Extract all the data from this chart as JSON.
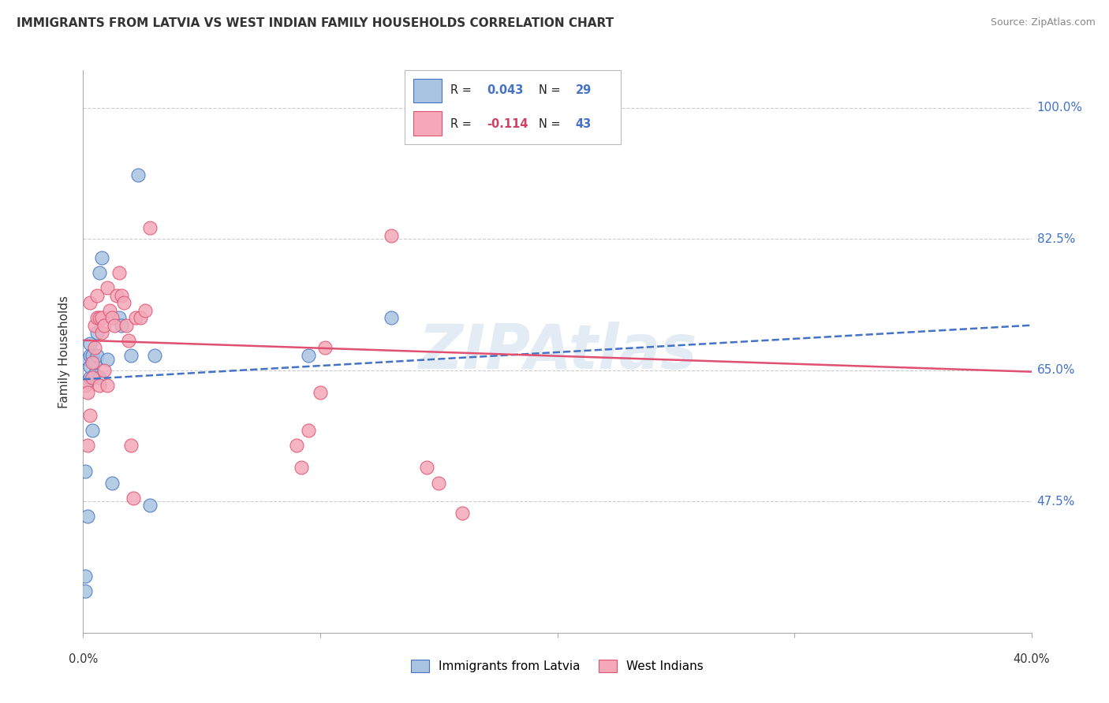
{
  "title": "IMMIGRANTS FROM LATVIA VS WEST INDIAN FAMILY HOUSEHOLDS CORRELATION CHART",
  "source": "Source: ZipAtlas.com",
  "ylabel": "Family Households",
  "ytick_labels": [
    "100.0%",
    "82.5%",
    "65.0%",
    "47.5%"
  ],
  "ytick_values": [
    1.0,
    0.825,
    0.65,
    0.475
  ],
  "xlim": [
    0.0,
    0.4
  ],
  "ylim": [
    0.3,
    1.05
  ],
  "color_latvia": "#a8c4e0",
  "color_west_indian": "#f4a8b8",
  "color_line_latvia": "#4472c4",
  "color_line_west_indian": "#e05070",
  "color_text_blue": "#4472c4",
  "color_r_negative": "#d04060",
  "color_grid": "#cccccc",
  "watermark_color": "#c8d8ec",
  "latvia_scatter_x": [
    0.001,
    0.001,
    0.001,
    0.002,
    0.002,
    0.002,
    0.003,
    0.003,
    0.003,
    0.003,
    0.004,
    0.004,
    0.005,
    0.005,
    0.006,
    0.006,
    0.007,
    0.007,
    0.008,
    0.01,
    0.012,
    0.015,
    0.016,
    0.02,
    0.023,
    0.028,
    0.03,
    0.095,
    0.13
  ],
  "latvia_scatter_y": [
    0.355,
    0.375,
    0.515,
    0.455,
    0.635,
    0.665,
    0.64,
    0.655,
    0.67,
    0.685,
    0.57,
    0.67,
    0.645,
    0.66,
    0.67,
    0.7,
    0.64,
    0.78,
    0.8,
    0.665,
    0.5,
    0.72,
    0.71,
    0.67,
    0.91,
    0.47,
    0.67,
    0.67,
    0.72
  ],
  "west_indian_scatter_x": [
    0.001,
    0.002,
    0.002,
    0.003,
    0.003,
    0.004,
    0.004,
    0.005,
    0.005,
    0.006,
    0.006,
    0.007,
    0.007,
    0.008,
    0.008,
    0.009,
    0.009,
    0.01,
    0.01,
    0.011,
    0.012,
    0.013,
    0.014,
    0.015,
    0.016,
    0.017,
    0.018,
    0.019,
    0.02,
    0.021,
    0.022,
    0.024,
    0.026,
    0.028,
    0.09,
    0.092,
    0.095,
    0.1,
    0.102,
    0.13,
    0.145,
    0.15,
    0.16
  ],
  "west_indian_scatter_y": [
    0.63,
    0.55,
    0.62,
    0.59,
    0.74,
    0.64,
    0.66,
    0.68,
    0.71,
    0.72,
    0.75,
    0.63,
    0.72,
    0.7,
    0.72,
    0.65,
    0.71,
    0.63,
    0.76,
    0.73,
    0.72,
    0.71,
    0.75,
    0.78,
    0.75,
    0.74,
    0.71,
    0.69,
    0.55,
    0.48,
    0.72,
    0.72,
    0.73,
    0.84,
    0.55,
    0.52,
    0.57,
    0.62,
    0.68,
    0.83,
    0.52,
    0.5,
    0.46
  ],
  "latvia_trend": [
    0.0,
    0.4,
    0.638,
    0.71
  ],
  "west_indian_trend": [
    0.0,
    0.4,
    0.69,
    0.648
  ],
  "legend_R1": "0.043",
  "legend_N1": "29",
  "legend_R2": "-0.114",
  "legend_N2": "43",
  "label_latvia": "Immigrants from Latvia",
  "label_west_indian": "West Indians"
}
